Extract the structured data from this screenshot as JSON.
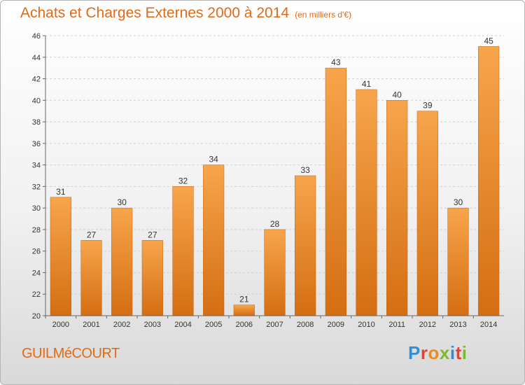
{
  "header": {
    "title": "Achats et Charges Externes 2000 à 2014",
    "subtitle": "(en milliers d'€)"
  },
  "footer": {
    "commune": "GUILMéCOURT",
    "brand": "Proxiti"
  },
  "colors": {
    "accent": "#e06a17",
    "bar_top": "#f7a54b",
    "bar_bottom": "#d46e12"
  },
  "chart_data": {
    "type": "bar",
    "title": "Achats et Charges Externes 2000 à 2014",
    "subtitle": "(en milliers d'€)",
    "xlabel": "",
    "ylabel": "",
    "categories": [
      "2000",
      "2001",
      "2002",
      "2003",
      "2004",
      "2005",
      "2006",
      "2007",
      "2008",
      "2009",
      "2010",
      "2011",
      "2012",
      "2013",
      "2014"
    ],
    "values": [
      31,
      27,
      30,
      27,
      32,
      34,
      21,
      28,
      33,
      43,
      41,
      40,
      39,
      30,
      45
    ],
    "ylim": [
      20,
      46
    ],
    "yticks": [
      20,
      22,
      24,
      26,
      28,
      30,
      32,
      34,
      36,
      38,
      40,
      42,
      44,
      46
    ],
    "grid": true,
    "data_labels": true
  }
}
